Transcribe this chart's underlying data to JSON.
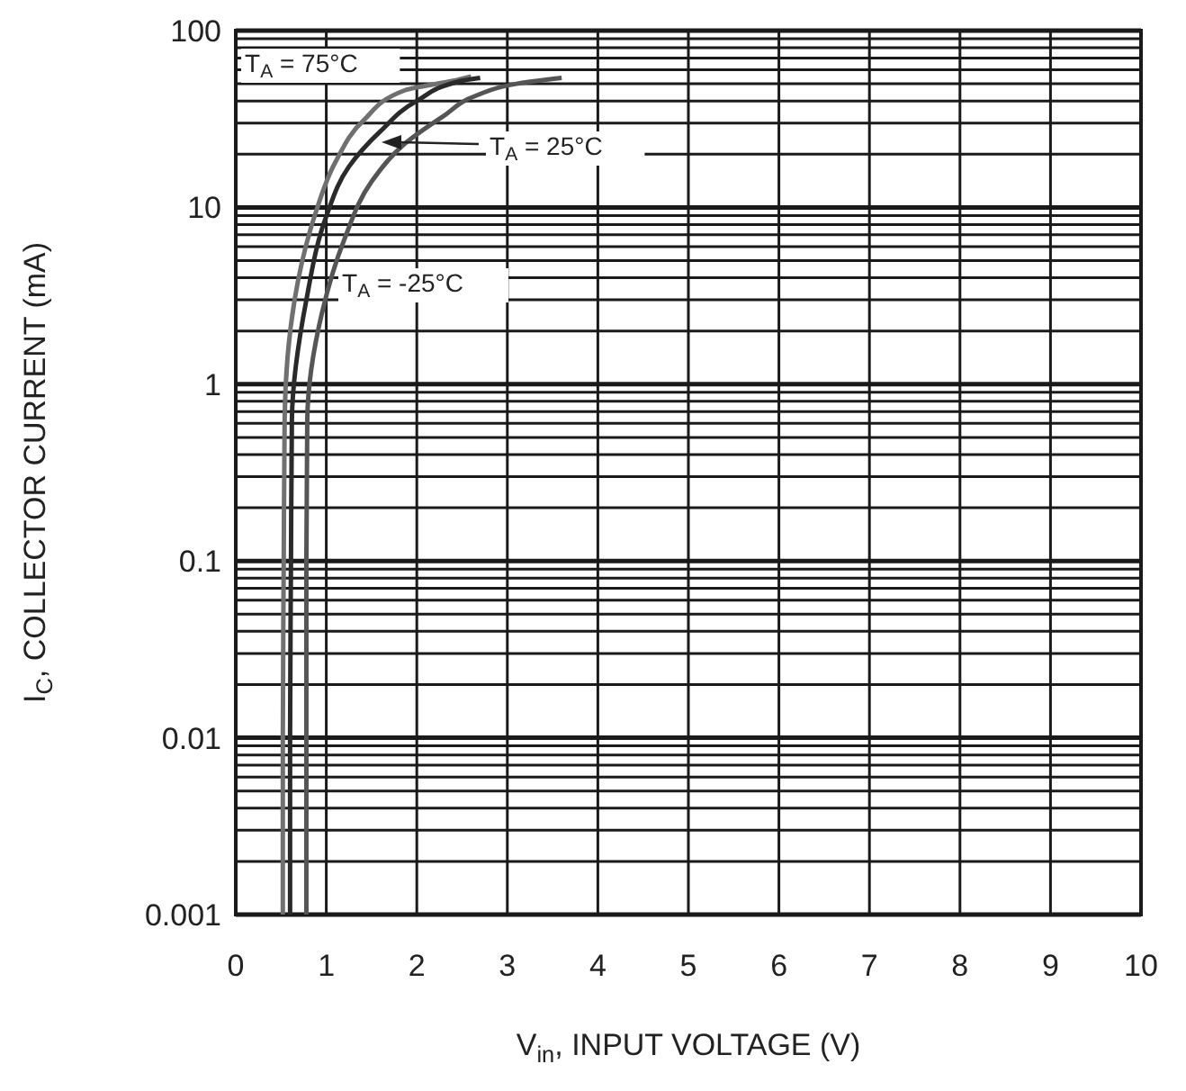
{
  "chart_data": {
    "type": "line",
    "xlabel": "V$_{in}$, INPUT VOLTAGE (V)",
    "ylabel": "I$_{C}$, COLLECTOR CURRENT (mA)",
    "xlim": [
      0,
      10
    ],
    "xticks": [
      0,
      1,
      2,
      3,
      4,
      5,
      6,
      7,
      8,
      9,
      10
    ],
    "ylim": [
      0.001,
      100
    ],
    "yticks": [
      0.001,
      0.01,
      0.1,
      1,
      10,
      100
    ],
    "log": "y",
    "grid": true,
    "marker": "none",
    "line_style": "solid",
    "series": [
      {
        "color": "#707070",
        "x": [
          0.52,
          0.52,
          0.53,
          0.54,
          0.65,
          0.87,
          1.1,
          1.41,
          1.87,
          2.4,
          2.6
        ],
        "values": [
          0.001,
          0.01,
          0.1,
          0.63,
          3,
          8.9,
          18,
          31,
          46,
          52,
          55
        ]
      },
      {
        "color": "#2a2a2a",
        "x": [
          0.6,
          0.6,
          0.61,
          0.62,
          0.78,
          1.0,
          1.25,
          1.6,
          2.0,
          2.5,
          2.7
        ],
        "values": [
          0.001,
          0.01,
          0.1,
          0.63,
          3,
          8.9,
          17,
          27,
          40,
          52,
          54
        ]
      },
      {
        "color": "#555555",
        "x": [
          0.78,
          0.78,
          0.78,
          0.79,
          0.95,
          1.2,
          1.5,
          1.87,
          2.3,
          2.66,
          3.1,
          3.6
        ],
        "values": [
          0.001,
          0.01,
          0.1,
          0.63,
          2.5,
          6.6,
          14,
          23,
          33,
          43,
          50,
          54
        ]
      }
    ],
    "annotations": [
      "T$_{A}$ = 75°C",
      "T$_{A}$ = 25°C",
      "T$_{A}$ = -25°C"
    ]
  }
}
